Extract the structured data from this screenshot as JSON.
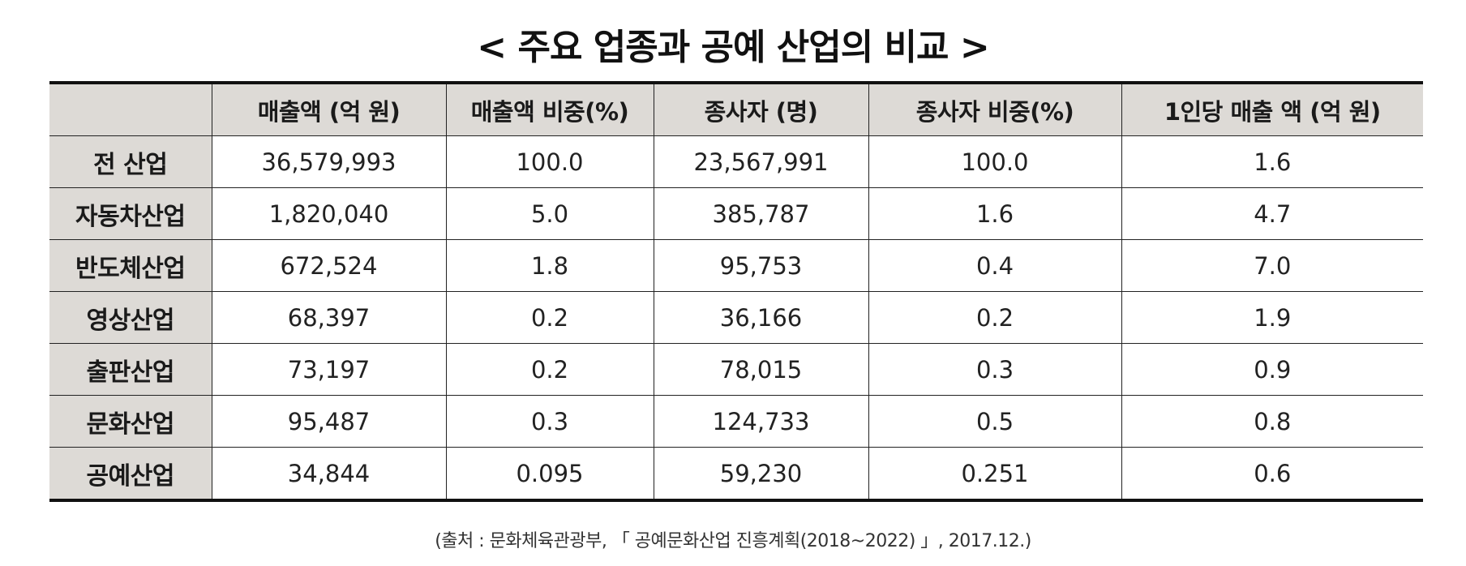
{
  "title": "< 주요 업종과 공예 산업의 비교 >",
  "table": {
    "columns": [
      "",
      "매출액 (억 원)",
      "매출액 비중(%)",
      "종사자 (명)",
      "종사자 비중(%)",
      "1인당 매출 액 (억 원)"
    ],
    "rows": [
      {
        "label": "전 산업",
        "cells": [
          "36,579,993",
          "100.0",
          "23,567,991",
          "100.0",
          "1.6"
        ]
      },
      {
        "label": "자동차산업",
        "cells": [
          "1,820,040",
          "5.0",
          "385,787",
          "1.6",
          "4.7"
        ]
      },
      {
        "label": "반도체산업",
        "cells": [
          "672,524",
          "1.8",
          "95,753",
          "0.4",
          "7.0"
        ]
      },
      {
        "label": "영상산업",
        "cells": [
          "68,397",
          "0.2",
          "36,166",
          "0.2",
          "1.9"
        ]
      },
      {
        "label": "출판산업",
        "cells": [
          "73,197",
          "0.2",
          "78,015",
          "0.3",
          "0.9"
        ]
      },
      {
        "label": "문화산업",
        "cells": [
          "95,487",
          "0.3",
          "124,733",
          "0.5",
          "0.8"
        ]
      },
      {
        "label": "공예산업",
        "cells": [
          "34,844",
          "0.095",
          "59,230",
          "0.251",
          "0.6"
        ]
      }
    ]
  },
  "source": "(출처 : 문화체육관광부, 「 공예문화산업 진흥계획(2018~2022) 」, 2017.12.)"
}
